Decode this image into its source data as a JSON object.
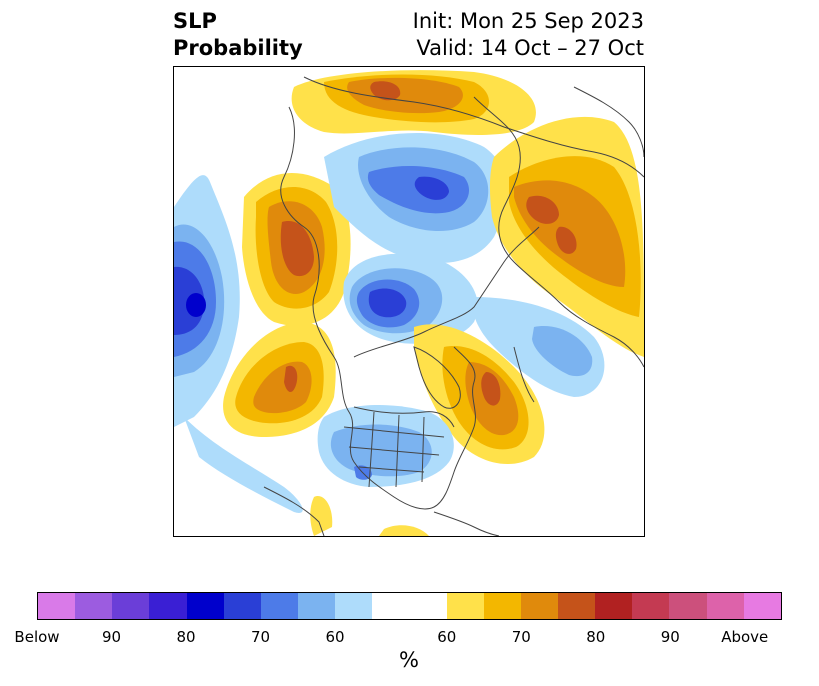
{
  "title": {
    "line1": "SLP",
    "line2": "Probability",
    "init": "Init: Mon 25 Sep 2023",
    "valid": "Valid: 14 Oct – 27 Oct"
  },
  "colorbar": {
    "unit": "%",
    "colors": [
      "#d97ae8",
      "#9c5ce0",
      "#6b3ed8",
      "#3a1fd4",
      "#0000cc",
      "#2a3fd6",
      "#4d7be8",
      "#7bb3f0",
      "#aedcfb",
      "#ffffff",
      "#ffe14a",
      "#f3b700",
      "#e08a0c",
      "#c5531a",
      "#b12121",
      "#c43a52",
      "#cc507c",
      "#dd62aa",
      "#e77ae2"
    ],
    "widths": [
      1,
      1,
      1,
      1,
      1,
      1,
      1,
      1,
      1,
      2,
      1,
      1,
      1,
      1,
      1,
      1,
      1,
      1,
      1
    ],
    "tick_labels": [
      "Below",
      "90",
      "80",
      "70",
      "60",
      "60",
      "70",
      "80",
      "90",
      "Above"
    ]
  },
  "map": {
    "level_colors": {
      "b60": "#aedcfb",
      "b65": "#7bb3f0",
      "b70": "#4d7be8",
      "b75": "#2a3fd6",
      "b80": "#0000cc",
      "a60": "#ffe14a",
      "a65": "#f3b700",
      "a70": "#e08a0c",
      "a75": "#c5531a"
    }
  }
}
